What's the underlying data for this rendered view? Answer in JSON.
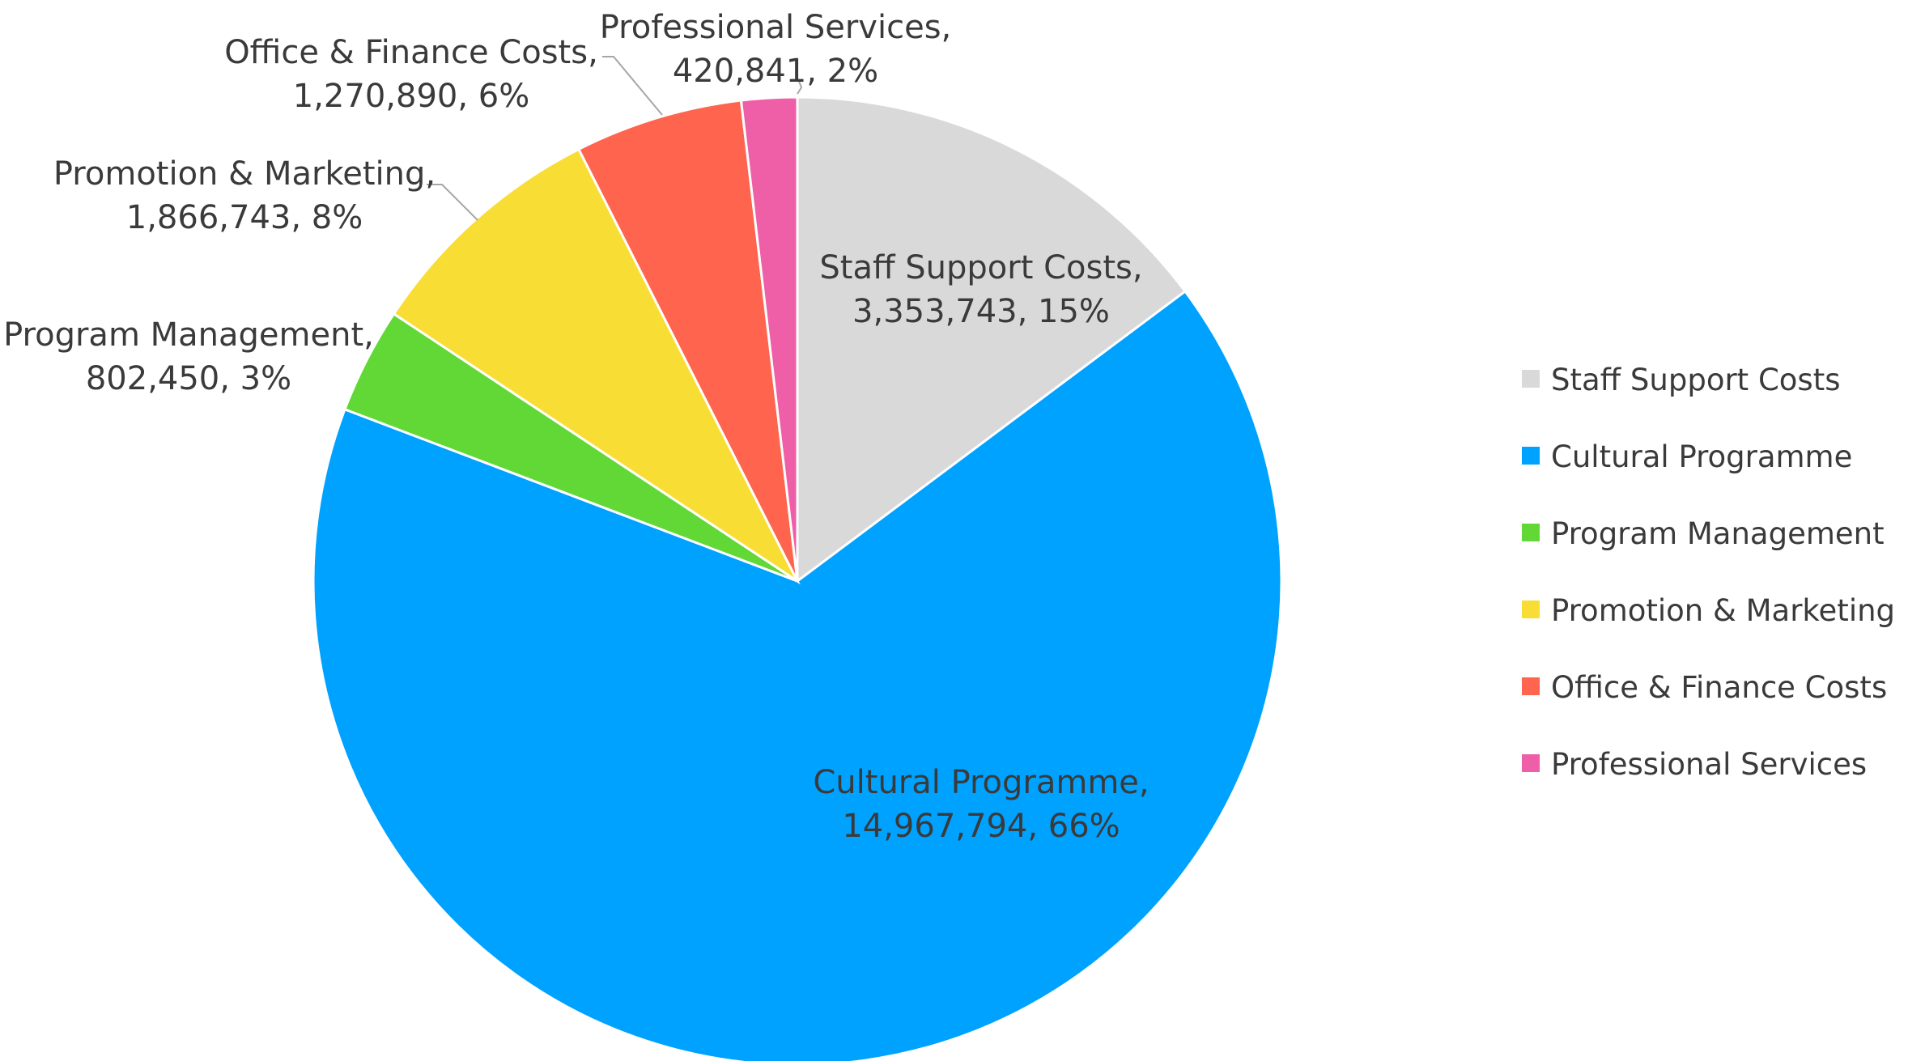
{
  "chart_data": {
    "type": "pie",
    "title": "",
    "slices": [
      {
        "label": "Staff Support Costs",
        "value": 3353743,
        "percent": "15%",
        "color": "#d9d9d9"
      },
      {
        "label": "Cultural Programme",
        "value": 14967794,
        "percent": "66%",
        "color": "#00a2ff"
      },
      {
        "label": "Program Management",
        "value": 802450,
        "percent": "3%",
        "color": "#61d836"
      },
      {
        "label": "Promotion & Marketing",
        "value": 1866743,
        "percent": "8%",
        "color": "#f8de34"
      },
      {
        "label": "Office & Finance Costs",
        "value": 1270890,
        "percent": "6%",
        "color": "#ff644e"
      },
      {
        "label": "Professional Services",
        "value": 420841,
        "percent": "2%",
        "color": "#ef5fa7"
      }
    ],
    "data_labels": [
      {
        "line1": "Staff Support Costs,",
        "line2": "3,353,743, 15%"
      },
      {
        "line1": "Cultural Programme,",
        "line2": "14,967,794, 66%"
      },
      {
        "line1": "Program Management,",
        "line2": "802,450, 3%"
      },
      {
        "line1": "Promotion & Marketing,",
        "line2": "1,866,743, 8%"
      },
      {
        "line1": "Office & Finance Costs,",
        "line2": "1,270,890, 6%"
      },
      {
        "line1": "Professional Services,",
        "line2": "420,841, 2%"
      }
    ],
    "legend": {
      "position": "right",
      "items": [
        "Staff Support Costs",
        "Cultural Programme",
        "Program Management",
        "Promotion & Marketing",
        "Office & Finance Costs",
        "Professional Services"
      ]
    },
    "start_angle_deg": 0,
    "direction": "clockwise"
  }
}
